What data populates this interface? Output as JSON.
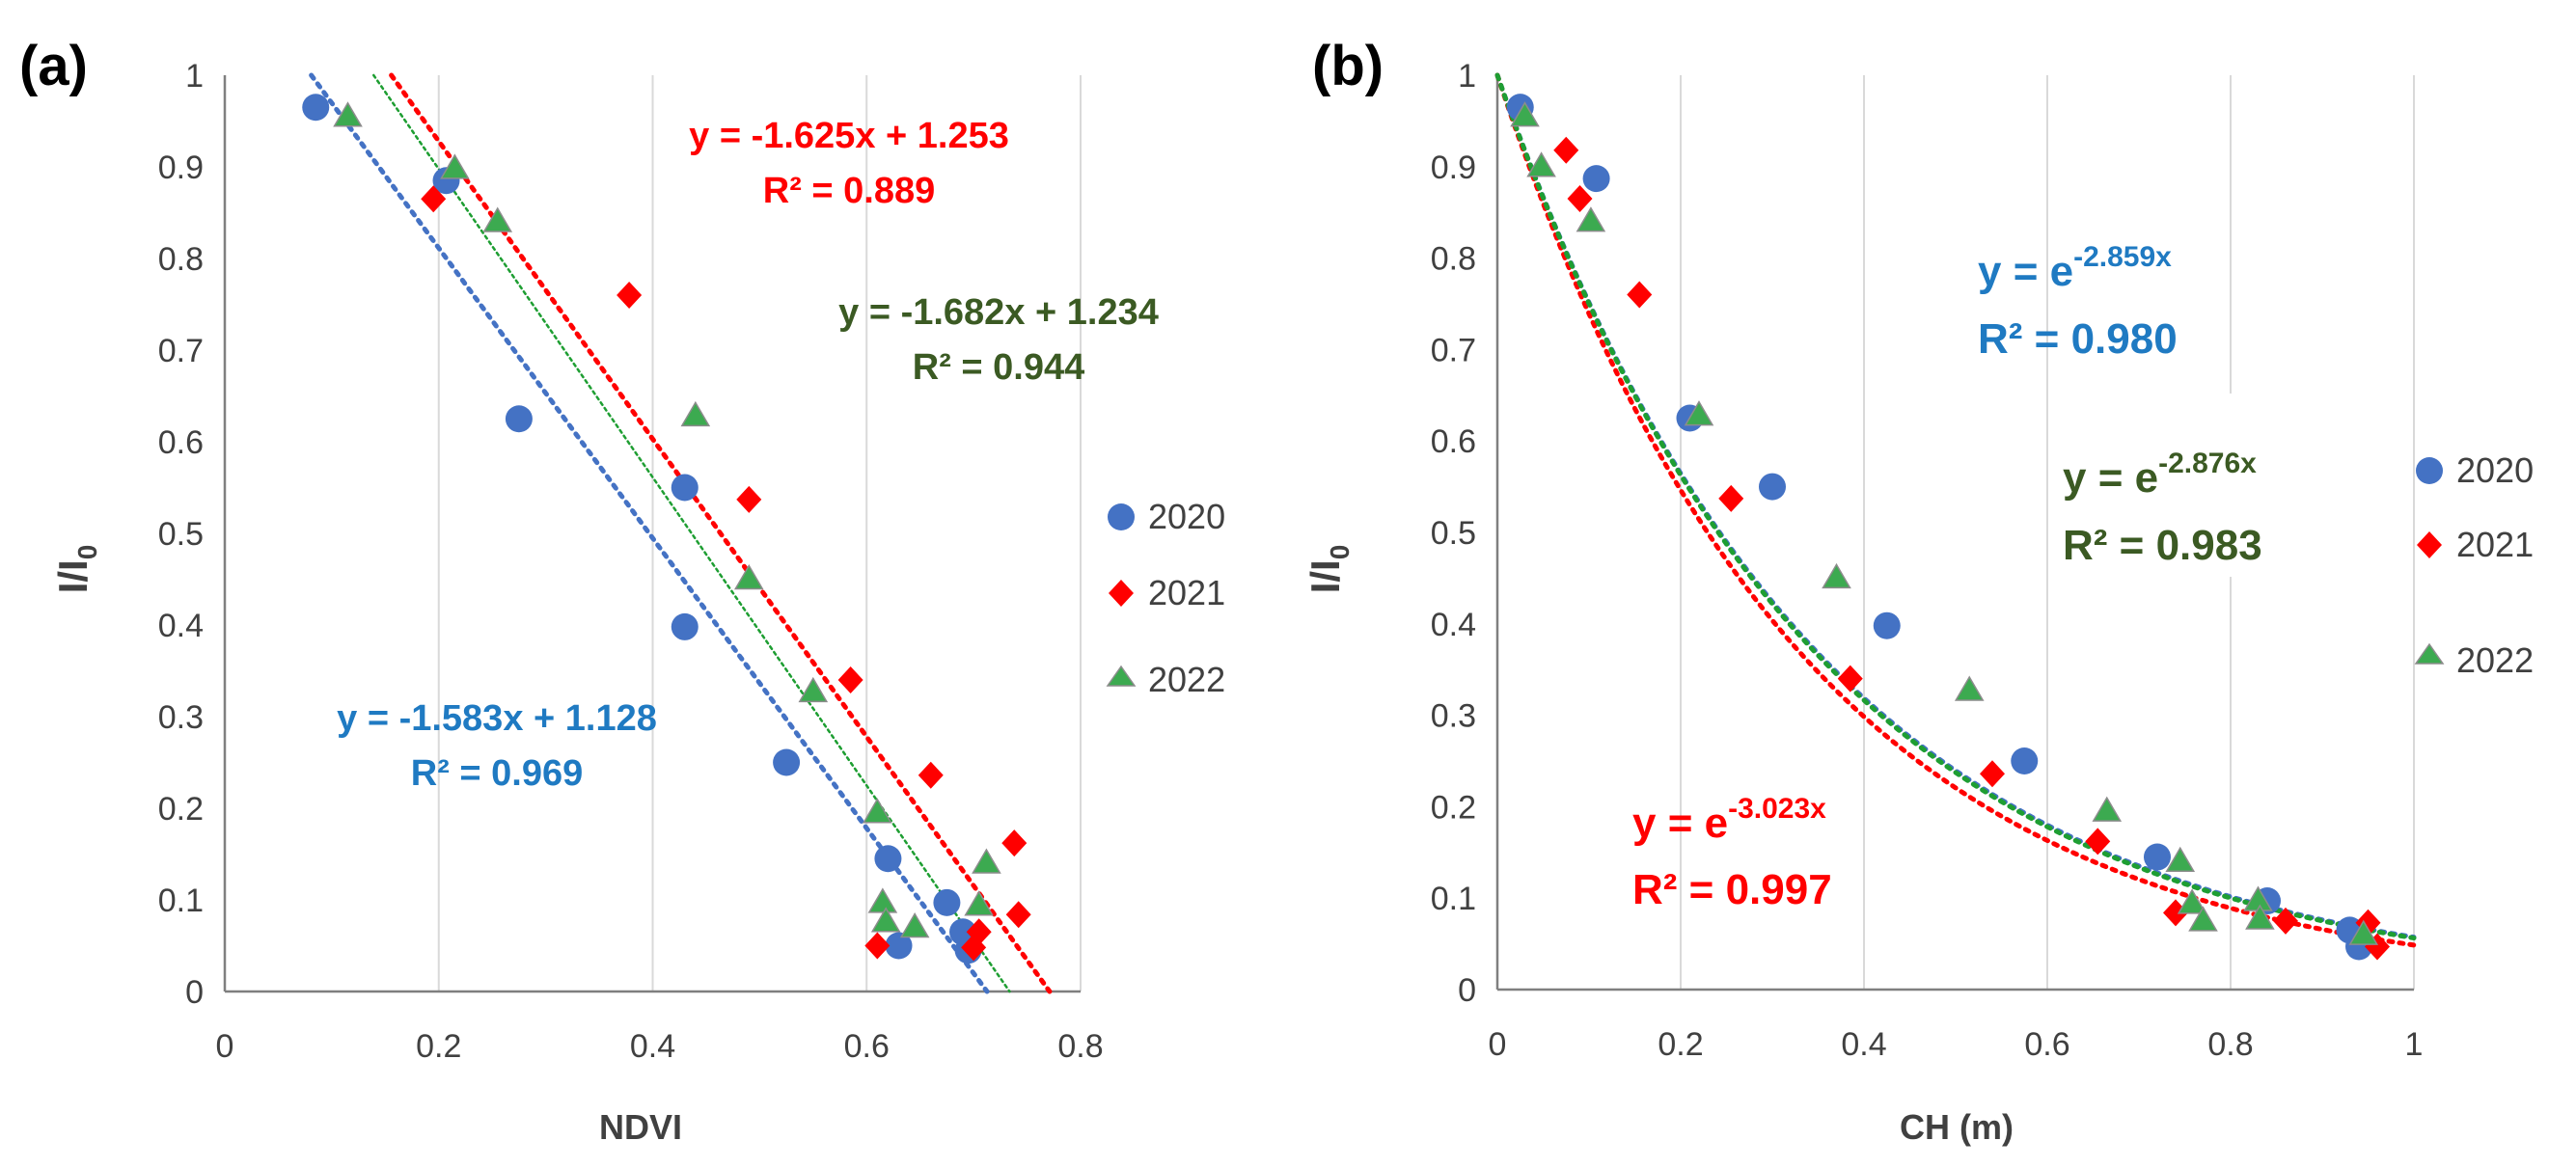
{
  "colors": {
    "s2020": "#4472C4",
    "s2021": "#FF0000",
    "s2022": "#3CAA50",
    "s2022_edge": "#8C8C8C",
    "trend2020": "#4472C4",
    "trend2021": "#FF0000",
    "trend2022": "#1E9E32",
    "eq2020": "#1F7AC2",
    "eq2021": "#FF0000",
    "eq2022": "#3B5A23",
    "axis": "#7F7F7F",
    "text": "#404040"
  },
  "chart_data": [
    {
      "type": "scatter",
      "panel_label": "(a)",
      "xlabel": "NDVI",
      "ylabel": "I/I",
      "ylabel_sub": "0",
      "xlim": [
        0,
        0.8
      ],
      "ylim": [
        0,
        1
      ],
      "x_ticks": [
        {
          "v": 0,
          "label": "0"
        },
        {
          "v": 0.2,
          "label": "0.2"
        },
        {
          "v": 0.4,
          "label": "0.4"
        },
        {
          "v": 0.6,
          "label": "0.6"
        },
        {
          "v": 0.8,
          "label": "0.8"
        }
      ],
      "y_ticks": [
        {
          "v": 0,
          "label": "0"
        },
        {
          "v": 0.1,
          "label": "0.1"
        },
        {
          "v": 0.2,
          "label": "0.2"
        },
        {
          "v": 0.3,
          "label": "0.3"
        },
        {
          "v": 0.4,
          "label": "0.4"
        },
        {
          "v": 0.5,
          "label": "0.5"
        },
        {
          "v": 0.6,
          "label": "0.6"
        },
        {
          "v": 0.7,
          "label": "0.7"
        },
        {
          "v": 0.8,
          "label": "0.8"
        },
        {
          "v": 0.9,
          "label": "0.9"
        },
        {
          "v": 1,
          "label": "1"
        }
      ],
      "grid": "vertical",
      "legend_position": "right",
      "series": [
        {
          "name": "2020",
          "marker": "circle",
          "points": [
            [
              0.085,
              0.965
            ],
            [
              0.207,
              0.885
            ],
            [
              0.275,
              0.625
            ],
            [
              0.43,
              0.55
            ],
            [
              0.43,
              0.398
            ],
            [
              0.525,
              0.25
            ],
            [
              0.62,
              0.145
            ],
            [
              0.63,
              0.05
            ],
            [
              0.675,
              0.097
            ],
            [
              0.69,
              0.065
            ],
            [
              0.695,
              0.045
            ]
          ],
          "trend": {
            "kind": "linear",
            "slope": -1.583,
            "intercept": 1.128,
            "eq_text": "y = -1.583x + 1.128",
            "r2_text": "R² = 0.969"
          }
        },
        {
          "name": "2021",
          "marker": "diamond",
          "points": [
            [
              0.195,
              0.865
            ],
            [
              0.378,
              0.76
            ],
            [
              0.49,
              0.537
            ],
            [
              0.585,
              0.34
            ],
            [
              0.66,
              0.236
            ],
            [
              0.61,
              0.05
            ],
            [
              0.7,
              0.048
            ],
            [
              0.705,
              0.065
            ],
            [
              0.738,
              0.162
            ],
            [
              0.742,
              0.084
            ]
          ],
          "trend": {
            "kind": "linear",
            "slope": -1.625,
            "intercept": 1.253,
            "eq_text": "y = -1.625x + 1.253",
            "r2_text": "R² = 0.889"
          }
        },
        {
          "name": "2022",
          "marker": "triangle",
          "points": [
            [
              0.115,
              0.955
            ],
            [
              0.215,
              0.898
            ],
            [
              0.255,
              0.84
            ],
            [
              0.44,
              0.628
            ],
            [
              0.49,
              0.45
            ],
            [
              0.55,
              0.327
            ],
            [
              0.61,
              0.195
            ],
            [
              0.615,
              0.097
            ],
            [
              0.618,
              0.076
            ],
            [
              0.645,
              0.07
            ],
            [
              0.705,
              0.094
            ],
            [
              0.712,
              0.14
            ]
          ],
          "trend": {
            "kind": "linear",
            "slope": -1.682,
            "intercept": 1.234,
            "eq_text": "y = -1.682x + 1.234",
            "r2_text": "R² = 0.944"
          }
        }
      ]
    },
    {
      "type": "scatter",
      "panel_label": "(b)",
      "xlabel": "CH (m)",
      "ylabel": "I/I",
      "ylabel_sub": "0",
      "xlim": [
        0,
        1
      ],
      "ylim": [
        0,
        1
      ],
      "x_ticks": [
        {
          "v": 0,
          "label": "0"
        },
        {
          "v": 0.2,
          "label": "0.2"
        },
        {
          "v": 0.4,
          "label": "0.4"
        },
        {
          "v": 0.6,
          "label": "0.6"
        },
        {
          "v": 0.8,
          "label": "0.8"
        },
        {
          "v": 1,
          "label": "1"
        }
      ],
      "y_ticks": [
        {
          "v": 0,
          "label": "0"
        },
        {
          "v": 0.1,
          "label": "0.1"
        },
        {
          "v": 0.2,
          "label": "0.2"
        },
        {
          "v": 0.3,
          "label": "0.3"
        },
        {
          "v": 0.4,
          "label": "0.4"
        },
        {
          "v": 0.5,
          "label": "0.5"
        },
        {
          "v": 0.6,
          "label": "0.6"
        },
        {
          "v": 0.7,
          "label": "0.7"
        },
        {
          "v": 0.8,
          "label": "0.8"
        },
        {
          "v": 0.9,
          "label": "0.9"
        },
        {
          "v": 1,
          "label": "1"
        }
      ],
      "grid": "vertical",
      "legend_position": "right",
      "series": [
        {
          "name": "2020",
          "marker": "circle",
          "points": [
            [
              0.025,
              0.965
            ],
            [
              0.108,
              0.887
            ],
            [
              0.21,
              0.625
            ],
            [
              0.3,
              0.55
            ],
            [
              0.425,
              0.398
            ],
            [
              0.575,
              0.25
            ],
            [
              0.72,
              0.145
            ],
            [
              0.84,
              0.097
            ],
            [
              0.93,
              0.065
            ],
            [
              0.94,
              0.047
            ]
          ],
          "trend": {
            "kind": "exponential",
            "k": -2.859,
            "eq_base": "y = e",
            "eq_exp": "-2.859x",
            "r2_text": "R² = 0.980"
          }
        },
        {
          "name": "2021",
          "marker": "diamond",
          "points": [
            [
              0.075,
              0.918
            ],
            [
              0.09,
              0.865
            ],
            [
              0.155,
              0.76
            ],
            [
              0.255,
              0.537
            ],
            [
              0.385,
              0.34
            ],
            [
              0.54,
              0.236
            ],
            [
              0.655,
              0.162
            ],
            [
              0.74,
              0.084
            ],
            [
              0.86,
              0.075
            ],
            [
              0.95,
              0.073
            ],
            [
              0.96,
              0.047
            ]
          ],
          "trend": {
            "kind": "exponential",
            "k": -3.023,
            "eq_base": "y = e",
            "eq_exp": "-3.023x",
            "r2_text": "R² = 0.997"
          }
        },
        {
          "name": "2022",
          "marker": "triangle",
          "points": [
            [
              0.03,
              0.955
            ],
            [
              0.048,
              0.9
            ],
            [
              0.102,
              0.84
            ],
            [
              0.22,
              0.628
            ],
            [
              0.37,
              0.45
            ],
            [
              0.515,
              0.327
            ],
            [
              0.665,
              0.195
            ],
            [
              0.745,
              0.14
            ],
            [
              0.758,
              0.094
            ],
            [
              0.77,
              0.075
            ],
            [
              0.83,
              0.097
            ],
            [
              0.832,
              0.077
            ],
            [
              0.945,
              0.06
            ]
          ],
          "trend": {
            "kind": "exponential",
            "k": -2.876,
            "eq_base": "y = e",
            "eq_exp": "-2.876x",
            "r2_text": "R² = 0.983"
          }
        }
      ]
    }
  ]
}
